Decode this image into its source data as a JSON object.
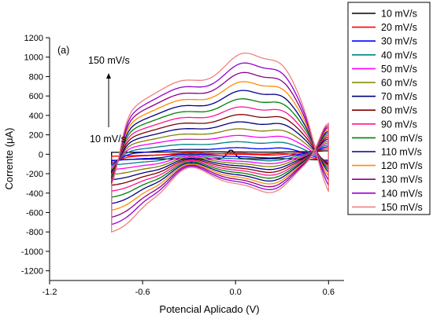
{
  "chart_data": {
    "type": "line",
    "panel_label": "(a)",
    "xlabel": "Potencial Aplicado (V)",
    "ylabel": "Corrente (μA)",
    "xlim": [
      -1.2,
      0.7
    ],
    "ylim": [
      -1300,
      1200
    ],
    "xticks": [
      -1.2,
      -0.6,
      0.0,
      0.6
    ],
    "xtick_labels": [
      "-1.2",
      "-0.6",
      "0.0",
      "0.6"
    ],
    "yticks": [
      -1200,
      -1000,
      -800,
      -600,
      -400,
      -200,
      0,
      200,
      400,
      600,
      800,
      1000,
      1200
    ],
    "ytick_labels": [
      "-1200",
      "-1000",
      "-800",
      "-600",
      "-400",
      "-200",
      "0",
      "200",
      "400",
      "600",
      "800",
      "1000",
      "1200"
    ],
    "legend_position": "top-right",
    "annotations": {
      "top": "150 mV/s",
      "bottom": "10 mV/s"
    },
    "series": [
      {
        "name": "10 mV/s",
        "color": "#000000",
        "scan_rate": 10
      },
      {
        "name": "20 mV/s",
        "color": "#ff0000",
        "scan_rate": 20
      },
      {
        "name": "30 mV/s",
        "color": "#0000ff",
        "scan_rate": 30
      },
      {
        "name": "40 mV/s",
        "color": "#008080",
        "scan_rate": 40
      },
      {
        "name": "50 mV/s",
        "color": "#ff00ff",
        "scan_rate": 50
      },
      {
        "name": "60 mV/s",
        "color": "#808000",
        "scan_rate": 60
      },
      {
        "name": "70 mV/s",
        "color": "#000080",
        "scan_rate": 70
      },
      {
        "name": "80 mV/s",
        "color": "#800000",
        "scan_rate": 80
      },
      {
        "name": "90 mV/s",
        "color": "#ff1493",
        "scan_rate": 90
      },
      {
        "name": "100 mV/s",
        "color": "#008000",
        "scan_rate": 100
      },
      {
        "name": "110 mV/s",
        "color": "#00008b",
        "scan_rate": 110
      },
      {
        "name": "120 mV/s",
        "color": "#ff8c00",
        "scan_rate": 120
      },
      {
        "name": "130 mV/s",
        "color": "#8b008b",
        "scan_rate": 130
      },
      {
        "name": "140 mV/s",
        "color": "#9400d3",
        "scan_rate": 140
      },
      {
        "name": "150 mV/s",
        "color": "#f08080",
        "scan_rate": 150
      }
    ]
  }
}
